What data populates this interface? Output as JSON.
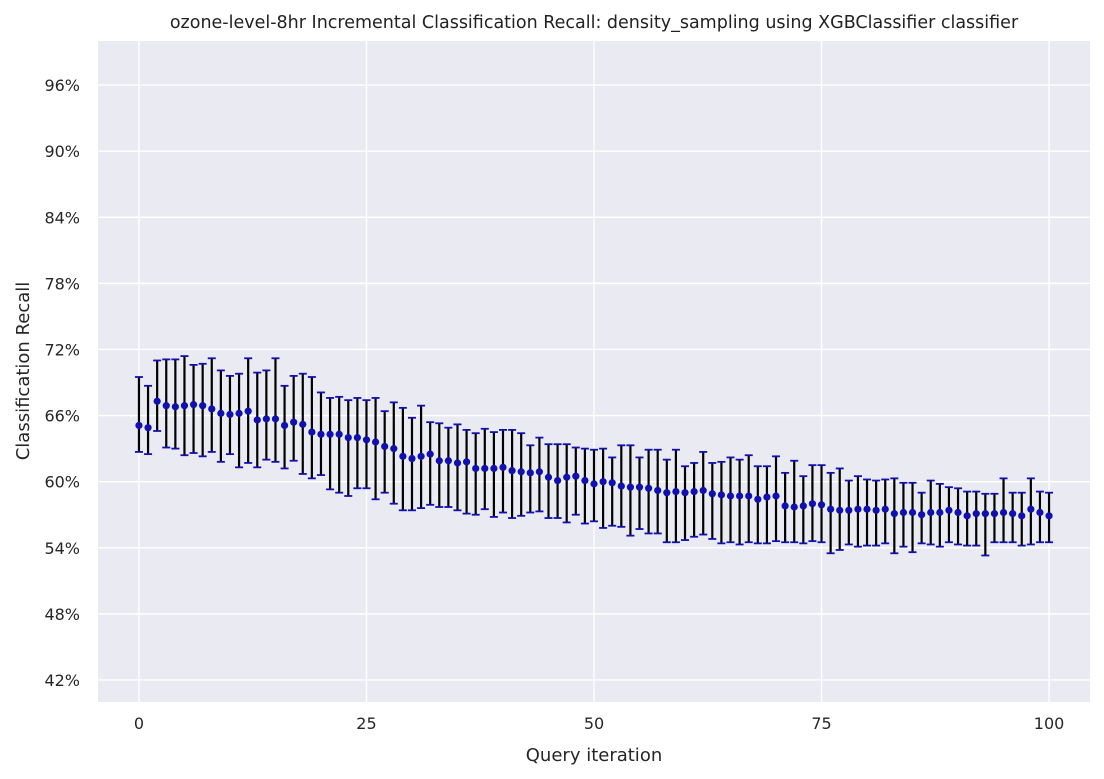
{
  "chart_data": {
    "type": "scatter",
    "title": "ozone-level-8hr Incremental Classification Recall: density_sampling using XGBClassifier classifier",
    "xlabel": "Query iteration",
    "ylabel": "Classification Recall",
    "xlim": [
      -4.5,
      104.5
    ],
    "ylim": [
      0.4,
      1.0
    ],
    "xticks": [
      0,
      25,
      50,
      75,
      100
    ],
    "yticks": [
      0.42,
      0.48,
      0.54,
      0.6,
      0.66,
      0.72,
      0.78,
      0.84,
      0.9,
      0.96
    ],
    "xtick_labels": [
      "0",
      "25",
      "50",
      "75",
      "100"
    ],
    "ytick_labels": [
      "42%",
      "48%",
      "54%",
      "60%",
      "66%",
      "72%",
      "78%",
      "84%",
      "90%",
      "96%"
    ],
    "grid": true,
    "colors": {
      "background": "#eaeaf2",
      "grid": "#ffffff",
      "marker": "#1010b0",
      "errorbar": "#000000",
      "cap": "#1010b0"
    },
    "x": [
      0,
      1,
      2,
      3,
      4,
      5,
      6,
      7,
      8,
      9,
      10,
      11,
      12,
      13,
      14,
      15,
      16,
      17,
      18,
      19,
      20,
      21,
      22,
      23,
      24,
      25,
      26,
      27,
      28,
      29,
      30,
      31,
      32,
      33,
      34,
      35,
      36,
      37,
      38,
      39,
      40,
      41,
      42,
      43,
      44,
      45,
      46,
      47,
      48,
      49,
      50,
      51,
      52,
      53,
      54,
      55,
      56,
      57,
      58,
      59,
      60,
      61,
      62,
      63,
      64,
      65,
      66,
      67,
      68,
      69,
      70,
      71,
      72,
      73,
      74,
      75,
      76,
      77,
      78,
      79,
      80,
      81,
      82,
      83,
      84,
      85,
      86,
      87,
      88,
      89,
      90,
      91,
      92,
      93,
      94,
      95,
      96,
      97,
      98,
      99,
      100
    ],
    "mean": [
      0.651,
      0.649,
      0.673,
      0.669,
      0.668,
      0.669,
      0.67,
      0.669,
      0.666,
      0.662,
      0.661,
      0.662,
      0.664,
      0.656,
      0.657,
      0.657,
      0.651,
      0.654,
      0.652,
      0.645,
      0.643,
      0.643,
      0.643,
      0.64,
      0.64,
      0.638,
      0.636,
      0.632,
      0.63,
      0.623,
      0.621,
      0.623,
      0.625,
      0.619,
      0.619,
      0.617,
      0.618,
      0.612,
      0.612,
      0.612,
      0.613,
      0.61,
      0.609,
      0.608,
      0.609,
      0.604,
      0.601,
      0.604,
      0.605,
      0.601,
      0.598,
      0.6,
      0.599,
      0.596,
      0.595,
      0.595,
      0.594,
      0.592,
      0.59,
      0.591,
      0.59,
      0.591,
      0.592,
      0.589,
      0.588,
      0.587,
      0.587,
      0.587,
      0.584,
      0.586,
      0.587,
      0.578,
      0.577,
      0.578,
      0.58,
      0.579,
      0.575,
      0.574,
      0.574,
      0.575,
      0.575,
      0.574,
      0.575,
      0.571,
      0.572,
      0.572,
      0.57,
      0.572,
      0.572,
      0.574,
      0.572,
      0.569,
      0.571,
      0.571,
      0.571,
      0.572,
      0.571,
      0.569,
      0.575,
      0.572,
      0.569
    ],
    "lower": [
      0.627,
      0.625,
      0.646,
      0.631,
      0.63,
      0.624,
      0.626,
      0.623,
      0.627,
      0.618,
      0.625,
      0.613,
      0.617,
      0.613,
      0.62,
      0.618,
      0.612,
      0.619,
      0.607,
      0.603,
      0.606,
      0.593,
      0.59,
      0.587,
      0.594,
      0.594,
      0.584,
      0.59,
      0.58,
      0.574,
      0.574,
      0.576,
      0.579,
      0.577,
      0.577,
      0.574,
      0.571,
      0.57,
      0.575,
      0.568,
      0.572,
      0.567,
      0.569,
      0.572,
      0.573,
      0.567,
      0.567,
      0.563,
      0.57,
      0.562,
      0.564,
      0.558,
      0.56,
      0.559,
      0.551,
      0.557,
      0.553,
      0.553,
      0.545,
      0.545,
      0.547,
      0.55,
      0.552,
      0.548,
      0.544,
      0.545,
      0.543,
      0.545,
      0.544,
      0.544,
      0.546,
      0.545,
      0.545,
      0.544,
      0.546,
      0.545,
      0.535,
      0.538,
      0.543,
      0.541,
      0.542,
      0.542,
      0.544,
      0.535,
      0.541,
      0.536,
      0.544,
      0.543,
      0.541,
      0.545,
      0.543,
      0.542,
      0.542,
      0.533,
      0.545,
      0.545,
      0.545,
      0.542,
      0.543,
      0.545,
      0.545
    ],
    "upper": [
      0.695,
      0.687,
      0.71,
      0.711,
      0.711,
      0.714,
      0.706,
      0.707,
      0.712,
      0.701,
      0.696,
      0.698,
      0.712,
      0.699,
      0.701,
      0.712,
      0.687,
      0.696,
      0.698,
      0.695,
      0.681,
      0.676,
      0.677,
      0.674,
      0.676,
      0.674,
      0.676,
      0.664,
      0.672,
      0.667,
      0.658,
      0.669,
      0.654,
      0.653,
      0.649,
      0.652,
      0.647,
      0.644,
      0.648,
      0.645,
      0.647,
      0.647,
      0.644,
      0.633,
      0.64,
      0.634,
      0.634,
      0.634,
      0.631,
      0.63,
      0.629,
      0.63,
      0.622,
      0.633,
      0.633,
      0.622,
      0.629,
      0.629,
      0.62,
      0.629,
      0.614,
      0.617,
      0.627,
      0.617,
      0.618,
      0.622,
      0.62,
      0.624,
      0.614,
      0.614,
      0.623,
      0.608,
      0.619,
      0.605,
      0.615,
      0.615,
      0.608,
      0.612,
      0.601,
      0.605,
      0.602,
      0.601,
      0.602,
      0.603,
      0.599,
      0.599,
      0.59,
      0.601,
      0.598,
      0.595,
      0.594,
      0.591,
      0.591,
      0.589,
      0.589,
      0.603,
      0.59,
      0.59,
      0.603,
      0.591,
      0.59
    ]
  }
}
